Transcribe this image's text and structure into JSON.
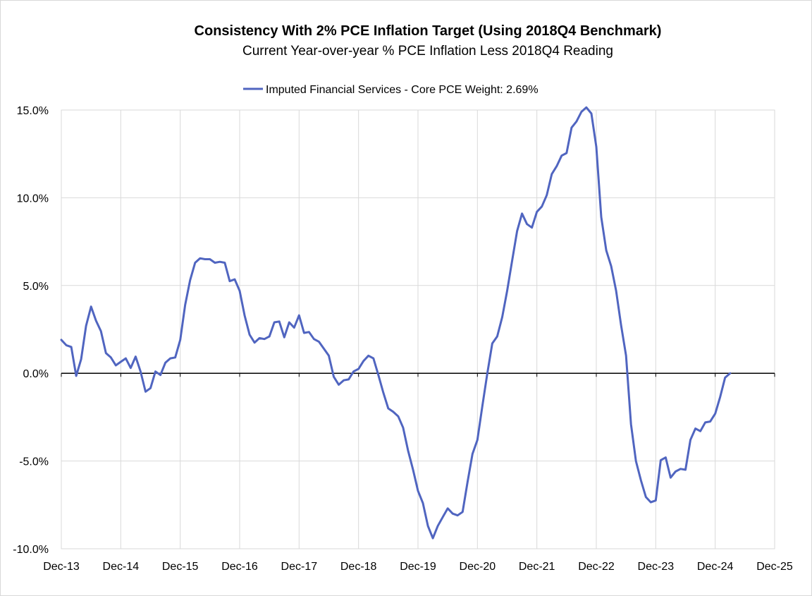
{
  "chart_data": {
    "type": "line",
    "title": "Consistency With 2% PCE Inflation Target (Using 2018Q4 Benchmark)",
    "subtitle": "Current Year-over-year % PCE Inflation Less 2018Q4 Reading",
    "legend_position": "top-center",
    "grid": true,
    "x_tick_labels": [
      "Dec-13",
      "Dec-14",
      "Dec-15",
      "Dec-16",
      "Dec-17",
      "Dec-18",
      "Dec-19",
      "Dec-20",
      "Dec-21",
      "Dec-22",
      "Dec-23",
      "Dec-24",
      "Dec-25"
    ],
    "xlim_months": [
      0,
      144
    ],
    "y_ticks": [
      15,
      10,
      5,
      0,
      -5,
      -10
    ],
    "y_tick_labels": [
      "15.0%",
      "10.0%",
      "5.0%",
      "0.0%",
      "-5.0%",
      "-10.0%"
    ],
    "ylim": [
      -10,
      15
    ],
    "series": [
      {
        "name": "Imputed Financial Services - Core PCE Weight: 2.69%",
        "color": "#5065C0",
        "start": "Dec-13",
        "values": [
          1.9,
          1.6,
          1.5,
          -0.15,
          0.8,
          2.7,
          3.8,
          3.0,
          2.4,
          1.15,
          0.9,
          0.45,
          0.65,
          0.85,
          0.3,
          0.95,
          0.1,
          -1.05,
          -0.85,
          0.1,
          -0.1,
          0.6,
          0.85,
          0.9,
          1.9,
          3.9,
          5.3,
          6.3,
          6.55,
          6.5,
          6.5,
          6.3,
          6.35,
          6.3,
          5.25,
          5.35,
          4.7,
          3.3,
          2.2,
          1.75,
          2.0,
          1.95,
          2.1,
          2.9,
          2.95,
          2.05,
          2.9,
          2.6,
          3.3,
          2.3,
          2.35,
          1.95,
          1.8,
          1.4,
          1.0,
          -0.2,
          -0.65,
          -0.4,
          -0.35,
          0.1,
          0.25,
          0.7,
          1.0,
          0.85,
          -0.1,
          -1.1,
          -2.0,
          -2.2,
          -2.45,
          -3.1,
          -4.4,
          -5.5,
          -6.7,
          -7.4,
          -8.7,
          -9.4,
          -8.7,
          -8.2,
          -7.7,
          -8.0,
          -8.1,
          -7.9,
          -6.2,
          -4.6,
          -3.8,
          -1.85,
          0.0,
          1.7,
          2.1,
          3.2,
          4.7,
          6.4,
          8.1,
          9.1,
          8.5,
          8.3,
          9.2,
          9.5,
          10.15,
          11.35,
          11.8,
          12.4,
          12.55,
          14.0,
          14.35,
          14.9,
          15.15,
          14.8,
          12.9,
          8.9,
          7.0,
          6.1,
          4.7,
          2.75,
          1.0,
          -2.9,
          -5.0,
          -6.1,
          -7.05,
          -7.35,
          -7.25,
          -4.95,
          -4.8,
          -5.95,
          -5.6,
          -5.45,
          -5.5,
          -3.8,
          -3.15,
          -3.3,
          -2.8,
          -2.75,
          -2.3,
          -1.35,
          -0.25,
          0.0
        ]
      }
    ]
  }
}
